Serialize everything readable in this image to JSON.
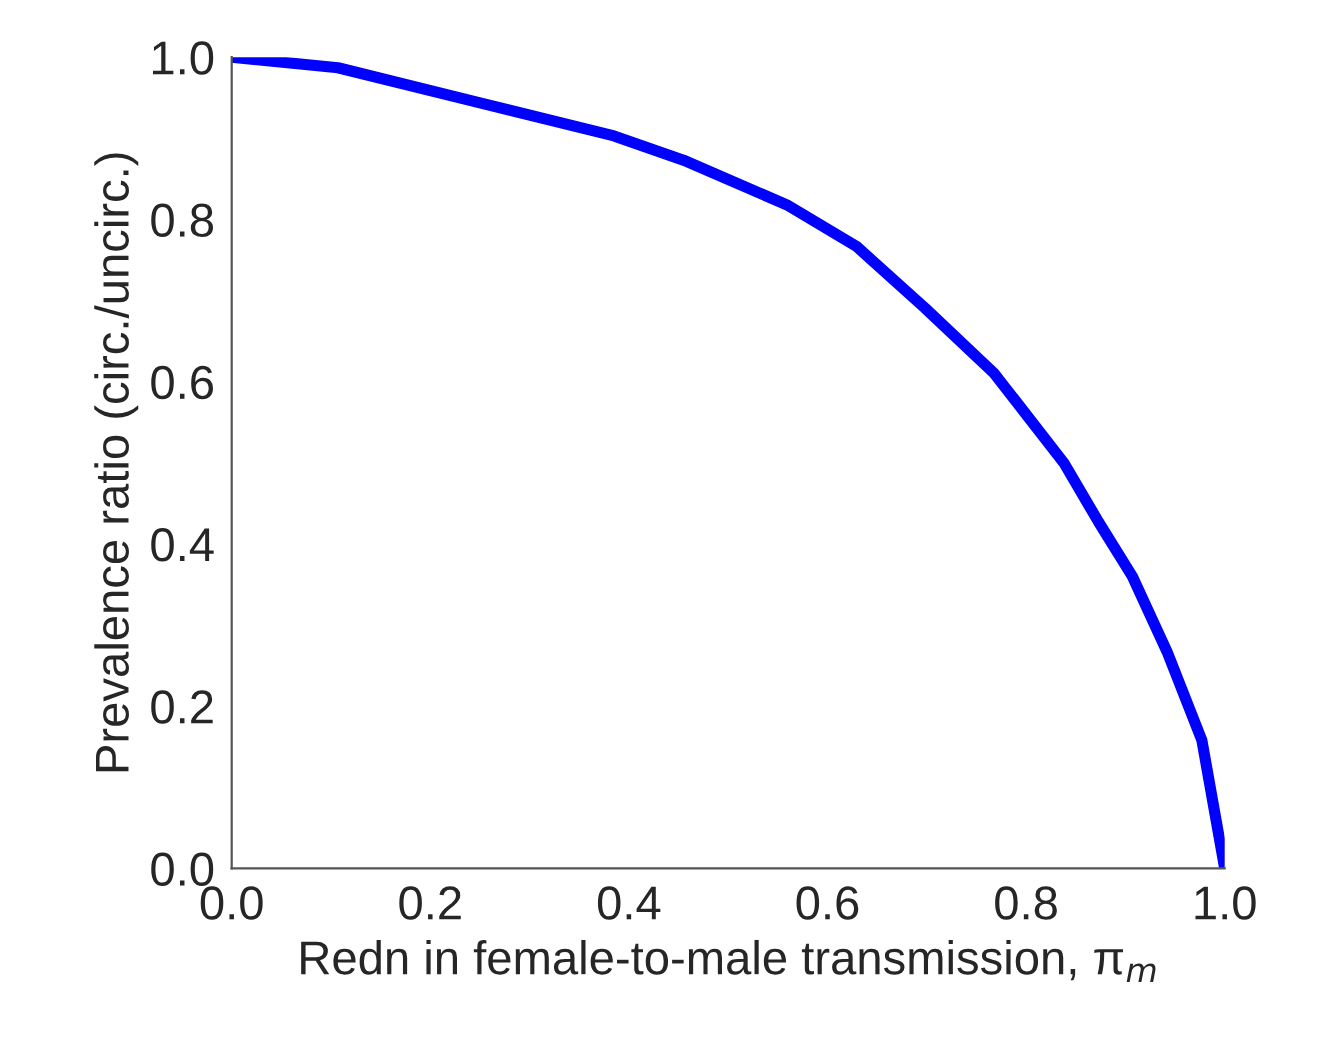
{
  "chart_data": {
    "type": "line",
    "xlabel": "Redn in female-to-male transmission, π$_{m}$",
    "ylabel": "Prevalence ratio (circ./uncirc.)",
    "x": [
      0,
      0.107,
      0.246,
      0.385,
      0.455,
      0.559,
      0.629,
      0.698,
      0.768,
      0.838,
      0.873,
      0.907,
      0.942,
      0.977,
      1.0
    ],
    "series": [
      {
        "color": "#0000ff",
        "values": [
          1.0,
          0.987,
          0.945,
          0.903,
          0.873,
          0.818,
          0.767,
          0.691,
          0.61,
          0.5,
          0.427,
          0.36,
          0.267,
          0.158,
          0.0
        ]
      }
    ],
    "xlim": [
      0,
      1
    ],
    "ylim": [
      0,
      1
    ],
    "xticks": [
      {
        "value": 0,
        "label": "0.0"
      },
      0.2,
      0.4,
      0.6,
      0.8,
      {
        "value": 1,
        "label": "1.0"
      }
    ],
    "yticks": [
      {
        "value": 0,
        "label": "0.0"
      },
      0.2,
      0.4,
      0.6,
      0.8,
      {
        "value": 1,
        "label": "1.0"
      }
    ],
    "grid": false,
    "legend": false,
    "marker": "none",
    "line_style": "solid"
  }
}
